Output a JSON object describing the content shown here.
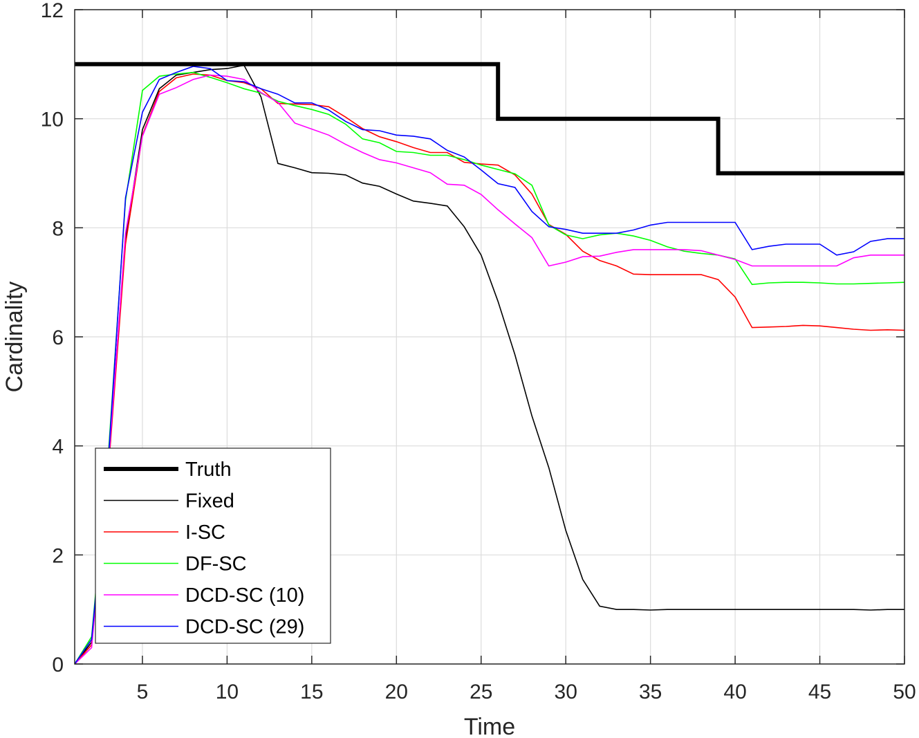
{
  "chart_data": {
    "type": "line",
    "title": "",
    "xlabel": "Time",
    "ylabel": "Cardinality",
    "xlim": [
      1,
      50
    ],
    "ylim": [
      0,
      12
    ],
    "xticks": [
      5,
      10,
      15,
      20,
      25,
      30,
      35,
      40,
      45,
      50
    ],
    "yticks": [
      0,
      2,
      4,
      6,
      8,
      10,
      12
    ],
    "xtick_labels": [
      "5",
      "10",
      "15",
      "20",
      "25",
      "30",
      "35",
      "40",
      "45",
      "50"
    ],
    "ytick_labels": [
      "0",
      "2",
      "4",
      "6",
      "8",
      "10",
      "12"
    ],
    "grid": true,
    "legend_position": "bottom-left",
    "series": [
      {
        "name": "Truth",
        "color": "#000000",
        "width": 6,
        "step": true,
        "x": [
          1,
          26,
          26,
          39,
          39,
          50
        ],
        "y": [
          11,
          11,
          10,
          10,
          9,
          9
        ]
      },
      {
        "name": "Fixed",
        "color": "#000000",
        "width": 1.6,
        "x": [
          1,
          2,
          3,
          4,
          5,
          6,
          7,
          8,
          9,
          10,
          11,
          12,
          13,
          14,
          15,
          16,
          17,
          18,
          19,
          20,
          21,
          22,
          23,
          24,
          25,
          26,
          27,
          28,
          29,
          30,
          31,
          32,
          33,
          34,
          35,
          36,
          37,
          38,
          39,
          40,
          41,
          42,
          43,
          44,
          45,
          46,
          47,
          48,
          49,
          50
        ],
        "y": [
          0,
          0.4,
          3.8,
          7.8,
          9.8,
          10.55,
          10.8,
          10.85,
          10.9,
          10.92,
          10.98,
          10.4,
          9.18,
          9.1,
          9.01,
          9.0,
          8.97,
          8.82,
          8.76,
          8.62,
          8.49,
          8.45,
          8.4,
          8.02,
          7.5,
          6.65,
          5.67,
          4.55,
          3.6,
          2.45,
          1.55,
          1.06,
          1.0,
          1.0,
          0.99,
          1.0,
          1.0,
          1.0,
          1.0,
          1.0,
          1.0,
          1.0,
          1.0,
          1.0,
          1.0,
          1.0,
          1.0,
          0.99,
          1.0,
          1.0
        ]
      },
      {
        "name": "I-SC",
        "color": "#ff0000",
        "width": 1.6,
        "x": [
          1,
          2,
          3,
          4,
          5,
          6,
          7,
          8,
          9,
          10,
          11,
          12,
          13,
          14,
          15,
          16,
          17,
          18,
          19,
          20,
          21,
          22,
          23,
          24,
          25,
          26,
          27,
          28,
          29,
          30,
          31,
          32,
          33,
          34,
          35,
          36,
          37,
          38,
          39,
          40,
          41,
          42,
          43,
          44,
          45,
          46,
          47,
          48,
          49,
          50
        ],
        "y": [
          0,
          0.35,
          3.6,
          7.7,
          9.7,
          10.5,
          10.75,
          10.82,
          10.8,
          10.7,
          10.66,
          10.55,
          10.28,
          10.27,
          10.26,
          10.22,
          10.03,
          9.82,
          9.67,
          9.58,
          9.47,
          9.38,
          9.38,
          9.2,
          9.17,
          9.15,
          8.97,
          8.62,
          8.06,
          7.88,
          7.57,
          7.4,
          7.3,
          7.15,
          7.14,
          7.14,
          7.14,
          7.14,
          7.05,
          6.73,
          6.17,
          6.18,
          6.19,
          6.21,
          6.2,
          6.17,
          6.14,
          6.12,
          6.13,
          6.12
        ]
      },
      {
        "name": "DF-SC",
        "color": "#00ff00",
        "width": 1.6,
        "x": [
          1,
          2,
          3,
          4,
          5,
          6,
          7,
          8,
          9,
          10,
          11,
          12,
          13,
          14,
          15,
          16,
          17,
          18,
          19,
          20,
          21,
          22,
          23,
          24,
          25,
          26,
          27,
          28,
          29,
          30,
          31,
          32,
          33,
          34,
          35,
          36,
          37,
          38,
          39,
          40,
          41,
          42,
          43,
          44,
          45,
          46,
          47,
          48,
          49,
          50
        ],
        "y": [
          0,
          0.5,
          3.9,
          8.5,
          10.52,
          10.78,
          10.82,
          10.85,
          10.76,
          10.66,
          10.55,
          10.47,
          10.32,
          10.24,
          10.17,
          10.08,
          9.9,
          9.63,
          9.56,
          9.4,
          9.38,
          9.33,
          9.33,
          9.25,
          9.15,
          9.07,
          8.99,
          8.78,
          8.05,
          7.87,
          7.8,
          7.87,
          7.9,
          7.85,
          7.77,
          7.65,
          7.57,
          7.53,
          7.5,
          7.43,
          6.96,
          6.99,
          7.0,
          7.0,
          6.99,
          6.97,
          6.97,
          6.98,
          6.99,
          7.0
        ]
      },
      {
        "name": "DCD-SC (10)",
        "color": "#ff00ff",
        "width": 1.6,
        "x": [
          1,
          2,
          3,
          4,
          5,
          6,
          7,
          8,
          9,
          10,
          11,
          12,
          13,
          14,
          15,
          16,
          17,
          18,
          19,
          20,
          21,
          22,
          23,
          24,
          25,
          26,
          27,
          28,
          29,
          30,
          31,
          32,
          33,
          34,
          35,
          36,
          37,
          38,
          39,
          40,
          41,
          42,
          43,
          44,
          45,
          46,
          47,
          48,
          49,
          50
        ],
        "y": [
          0,
          0.3,
          3.7,
          7.9,
          9.68,
          10.45,
          10.57,
          10.72,
          10.8,
          10.78,
          10.72,
          10.48,
          10.3,
          9.92,
          9.81,
          9.7,
          9.53,
          9.38,
          9.25,
          9.19,
          9.1,
          9.01,
          8.8,
          8.78,
          8.61,
          8.33,
          8.07,
          7.82,
          7.3,
          7.37,
          7.47,
          7.48,
          7.55,
          7.6,
          7.6,
          7.6,
          7.6,
          7.58,
          7.5,
          7.42,
          7.3,
          7.3,
          7.3,
          7.3,
          7.3,
          7.3,
          7.45,
          7.5,
          7.5,
          7.5
        ]
      },
      {
        "name": "DCD-SC (29)",
        "color": "#0000ff",
        "width": 1.6,
        "x": [
          1,
          2,
          3,
          4,
          5,
          6,
          7,
          8,
          9,
          10,
          11,
          12,
          13,
          14,
          15,
          16,
          17,
          18,
          19,
          20,
          21,
          22,
          23,
          24,
          25,
          26,
          27,
          28,
          29,
          30,
          31,
          32,
          33,
          34,
          35,
          36,
          37,
          38,
          39,
          40,
          41,
          42,
          43,
          44,
          45,
          46,
          47,
          48,
          49,
          50
        ],
        "y": [
          0,
          0.45,
          3.8,
          8.55,
          10.12,
          10.72,
          10.85,
          10.96,
          10.92,
          10.7,
          10.68,
          10.55,
          10.45,
          10.29,
          10.29,
          10.16,
          9.95,
          9.8,
          9.78,
          9.7,
          9.68,
          9.63,
          9.42,
          9.3,
          9.06,
          8.81,
          8.74,
          8.3,
          8.02,
          7.97,
          7.9,
          7.9,
          7.9,
          7.96,
          8.05,
          8.1,
          8.1,
          8.1,
          8.1,
          8.1,
          7.6,
          7.66,
          7.7,
          7.7,
          7.7,
          7.5,
          7.56,
          7.75,
          7.8,
          7.8
        ]
      }
    ]
  }
}
